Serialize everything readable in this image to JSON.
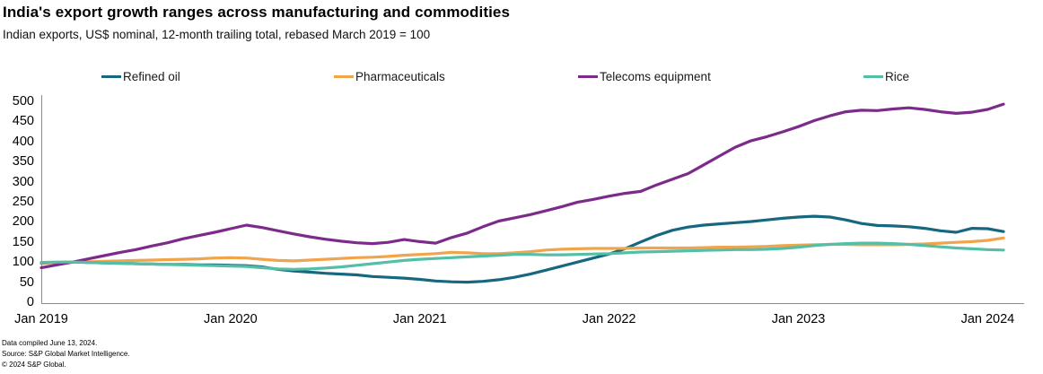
{
  "header": {
    "title": "India's export growth ranges across manufacturing and commodities",
    "subtitle": "Indian exports, US$ nominal, 12-month trailing total, rebased March 2019 = 100"
  },
  "legend": [
    {
      "label": "Refined oil",
      "color": "#17677f"
    },
    {
      "label": "Pharmaceuticals",
      "color": "#f0a44c"
    },
    {
      "label": "Telecoms equipment",
      "color": "#7d2b8b"
    },
    {
      "label": "Rice",
      "color": "#54bfa6"
    }
  ],
  "footer": {
    "line1": "Data compiled June 13, 2024.",
    "line2": "Source: S&P Global Market Intelligence.",
    "line3": "© 2024 S&P Global."
  },
  "chart_data": {
    "type": "line",
    "title": "India's export growth ranges across manufacturing and commodities",
    "subtitle": "Indian exports, US$ nominal, 12-month trailing total, rebased March 2019 = 100",
    "frequency": "monthly",
    "x_start": "Jan 2019",
    "x_end": "Feb 2024",
    "x_tick_labels": [
      "Jan 2019",
      "Jan 2020",
      "Jan 2021",
      "Jan 2022",
      "Jan 2023",
      "Jan 2024"
    ],
    "y_ticks": [
      0,
      50,
      100,
      150,
      200,
      250,
      300,
      350,
      400,
      450,
      500
    ],
    "ylim": [
      0,
      500
    ],
    "grid": false,
    "legend_position": "top",
    "axis_color": "#8c8c8c",
    "series": [
      {
        "name": "Refined oil",
        "color": "#17677f",
        "values": [
          97,
          99,
          100,
          99,
          98,
          97,
          96,
          95,
          94,
          94,
          93,
          93,
          92,
          91,
          88,
          82,
          78,
          75,
          72,
          70,
          68,
          64,
          62,
          60,
          57,
          53,
          51,
          50,
          52,
          56,
          62,
          70,
          80,
          90,
          100,
          110,
          120,
          133,
          150,
          166,
          179,
          187,
          192,
          195,
          198,
          201,
          205,
          209,
          212,
          214,
          212,
          205,
          196,
          191,
          190,
          188,
          184,
          178,
          174,
          184,
          183,
          176
        ]
      },
      {
        "name": "Pharmaceuticals",
        "color": "#f0a44c",
        "values": [
          98,
          99,
          100,
          101,
          102,
          103,
          104,
          105,
          106,
          107,
          108,
          110,
          111,
          110,
          107,
          104,
          103,
          105,
          107,
          109,
          111,
          112,
          114,
          117,
          119,
          121,
          124,
          123,
          121,
          121,
          123,
          126,
          130,
          132,
          133,
          134,
          134,
          134,
          135,
          135,
          135,
          135,
          136,
          137,
          137,
          138,
          139,
          141,
          142,
          143,
          144,
          144,
          143,
          143,
          143,
          144,
          145,
          147,
          149,
          151,
          154,
          160
        ]
      },
      {
        "name": "Telecoms equipment",
        "color": "#7d2b8b",
        "values": [
          86,
          93,
          100,
          108,
          116,
          124,
          131,
          140,
          148,
          158,
          166,
          174,
          183,
          192,
          186,
          178,
          170,
          163,
          157,
          152,
          148,
          146,
          149,
          156,
          151,
          147,
          161,
          172,
          188,
          202,
          210,
          218,
          228,
          238,
          249,
          256,
          264,
          271,
          276,
          292,
          306,
          320,
          342,
          364,
          386,
          402,
          412,
          424,
          437,
          452,
          464,
          474,
          478,
          477,
          481,
          484,
          480,
          474,
          470,
          473,
          480,
          493
        ]
      },
      {
        "name": "Rice",
        "color": "#54bfa6",
        "values": [
          99,
          100,
          100,
          99,
          98,
          97,
          96,
          95,
          94,
          93,
          92,
          91,
          90,
          89,
          86,
          83,
          82,
          83,
          85,
          88,
          92,
          96,
          100,
          104,
          107,
          109,
          111,
          113,
          115,
          117,
          119,
          119,
          118,
          118,
          119,
          120,
          121,
          123,
          125,
          126,
          127,
          128,
          129,
          130,
          131,
          131,
          132,
          134,
          137,
          141,
          144,
          146,
          147,
          147,
          146,
          144,
          141,
          138,
          135,
          133,
          131,
          130
        ]
      }
    ]
  }
}
